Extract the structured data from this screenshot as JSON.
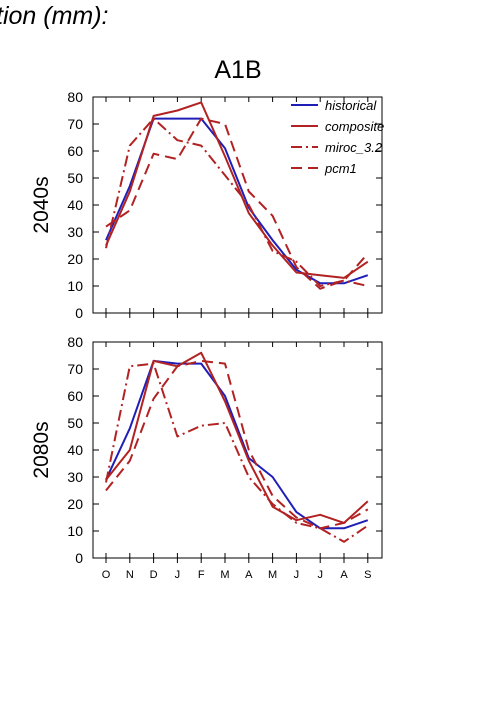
{
  "figure_title": "tion (mm):",
  "scenario": "A1B",
  "colors": {
    "historical": "#1f1fb8",
    "models": "#b22222",
    "axis": "#000000"
  },
  "chart_data": [
    {
      "type": "line",
      "panel_label": "2040s",
      "categories": [
        "O",
        "N",
        "D",
        "J",
        "F",
        "M",
        "A",
        "M",
        "J",
        "J",
        "A",
        "S"
      ],
      "ylim": [
        0,
        80
      ],
      "yticks": [
        0,
        10,
        20,
        30,
        40,
        50,
        60,
        70,
        80
      ],
      "legend": {
        "placement": "top-right"
      },
      "series": [
        {
          "name": "historical",
          "style": "solid",
          "color": "#1f1fb8",
          "values": [
            27,
            47,
            72,
            72,
            72,
            61,
            39,
            27,
            16,
            11,
            11,
            14
          ]
        },
        {
          "name": "composite",
          "style": "solid",
          "color": "#b22222",
          "values": [
            25,
            45,
            73,
            75,
            78,
            58,
            37,
            25,
            15,
            14,
            13,
            19
          ]
        },
        {
          "name": "miroc_3.2",
          "style": "dashdot",
          "color": "#b22222",
          "values": [
            24,
            62,
            72,
            64,
            62,
            51,
            40,
            23,
            19,
            10,
            12,
            10
          ]
        },
        {
          "name": "pcm1",
          "style": "dashed",
          "color": "#b22222",
          "values": [
            32,
            38,
            59,
            57,
            72,
            70,
            45,
            36,
            17,
            9,
            12,
            22
          ]
        }
      ]
    },
    {
      "type": "line",
      "panel_label": "2080s",
      "categories": [
        "O",
        "N",
        "D",
        "J",
        "F",
        "M",
        "A",
        "M",
        "J",
        "J",
        "A",
        "S"
      ],
      "ylim": [
        0,
        80
      ],
      "yticks": [
        0,
        10,
        20,
        30,
        40,
        50,
        60,
        70,
        80
      ],
      "series": [
        {
          "name": "historical",
          "style": "solid",
          "color": "#1f1fb8",
          "values": [
            29,
            48,
            73,
            72,
            72,
            60,
            37,
            30,
            17,
            11,
            11,
            14
          ]
        },
        {
          "name": "composite",
          "style": "solid",
          "color": "#b22222",
          "values": [
            29,
            40,
            73,
            71,
            76,
            58,
            36,
            19,
            14,
            16,
            13,
            21
          ]
        },
        {
          "name": "miroc_3.2",
          "style": "dashdot",
          "color": "#b22222",
          "values": [
            28,
            71,
            72,
            45,
            49,
            50,
            30,
            20,
            13,
            11,
            6,
            12
          ]
        },
        {
          "name": "pcm1",
          "style": "dashed",
          "color": "#b22222",
          "values": [
            25,
            36,
            59,
            71,
            73,
            72,
            40,
            23,
            15,
            11,
            13,
            18
          ]
        }
      ]
    }
  ]
}
